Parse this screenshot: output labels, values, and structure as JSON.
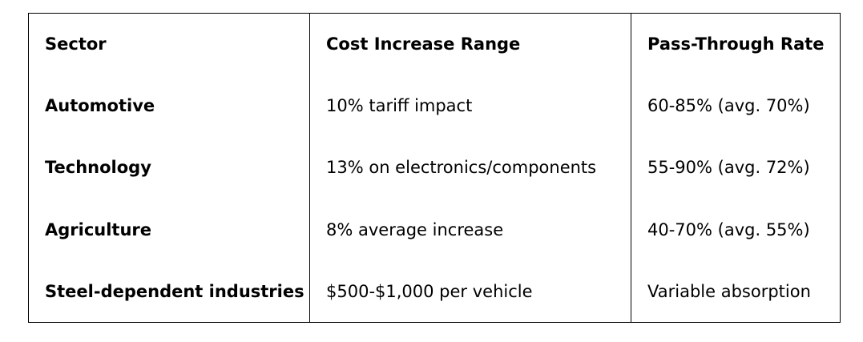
{
  "table": {
    "headers": [
      "Sector",
      "Cost Increase Range",
      "Pass-Through Rate"
    ],
    "rows": [
      [
        "Automotive",
        "10% tariff impact",
        "60-85% (avg. 70%)"
      ],
      [
        "Technology",
        "13% on electronics/components",
        "55-90% (avg. 72%)"
      ],
      [
        "Agriculture",
        "8% average increase",
        "40-70% (avg. 55%)"
      ],
      [
        "Steel-dependent industries",
        "$500-$1,000 per vehicle",
        "Variable absorption"
      ]
    ]
  }
}
